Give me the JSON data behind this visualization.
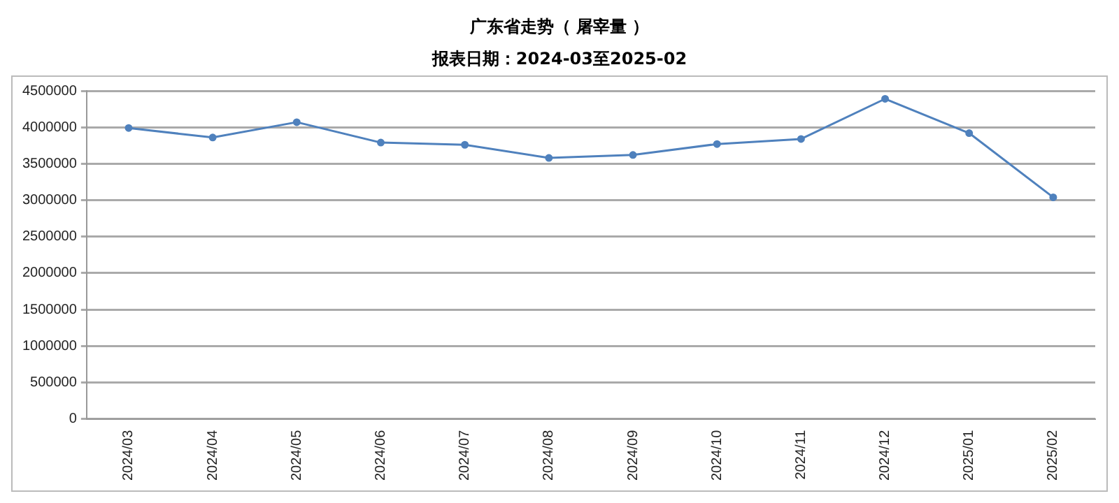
{
  "chart_data": {
    "type": "line",
    "title": "广东省走势（ 屠宰量 ）",
    "subtitle": "报表日期：2024-03至2025-02",
    "categories": [
      "2024/03",
      "2024/04",
      "2024/05",
      "2024/06",
      "2024/07",
      "2024/08",
      "2024/09",
      "2024/10",
      "2024/11",
      "2024/12",
      "2025/01",
      "2025/02"
    ],
    "series": [
      {
        "color": "#4f81bd",
        "values": [
          3990000,
          3860000,
          4070000,
          3790000,
          3760000,
          3580000,
          3620000,
          3770000,
          3840000,
          4390000,
          3920000,
          3040000
        ]
      }
    ],
    "ylim": [
      0,
      4500000
    ],
    "yticks": [
      0,
      500000,
      1000000,
      1500000,
      2000000,
      2500000,
      3000000,
      3500000,
      4000000,
      4500000
    ],
    "grid": "y",
    "legend": false,
    "marker": "circle",
    "line_style": "solid"
  }
}
